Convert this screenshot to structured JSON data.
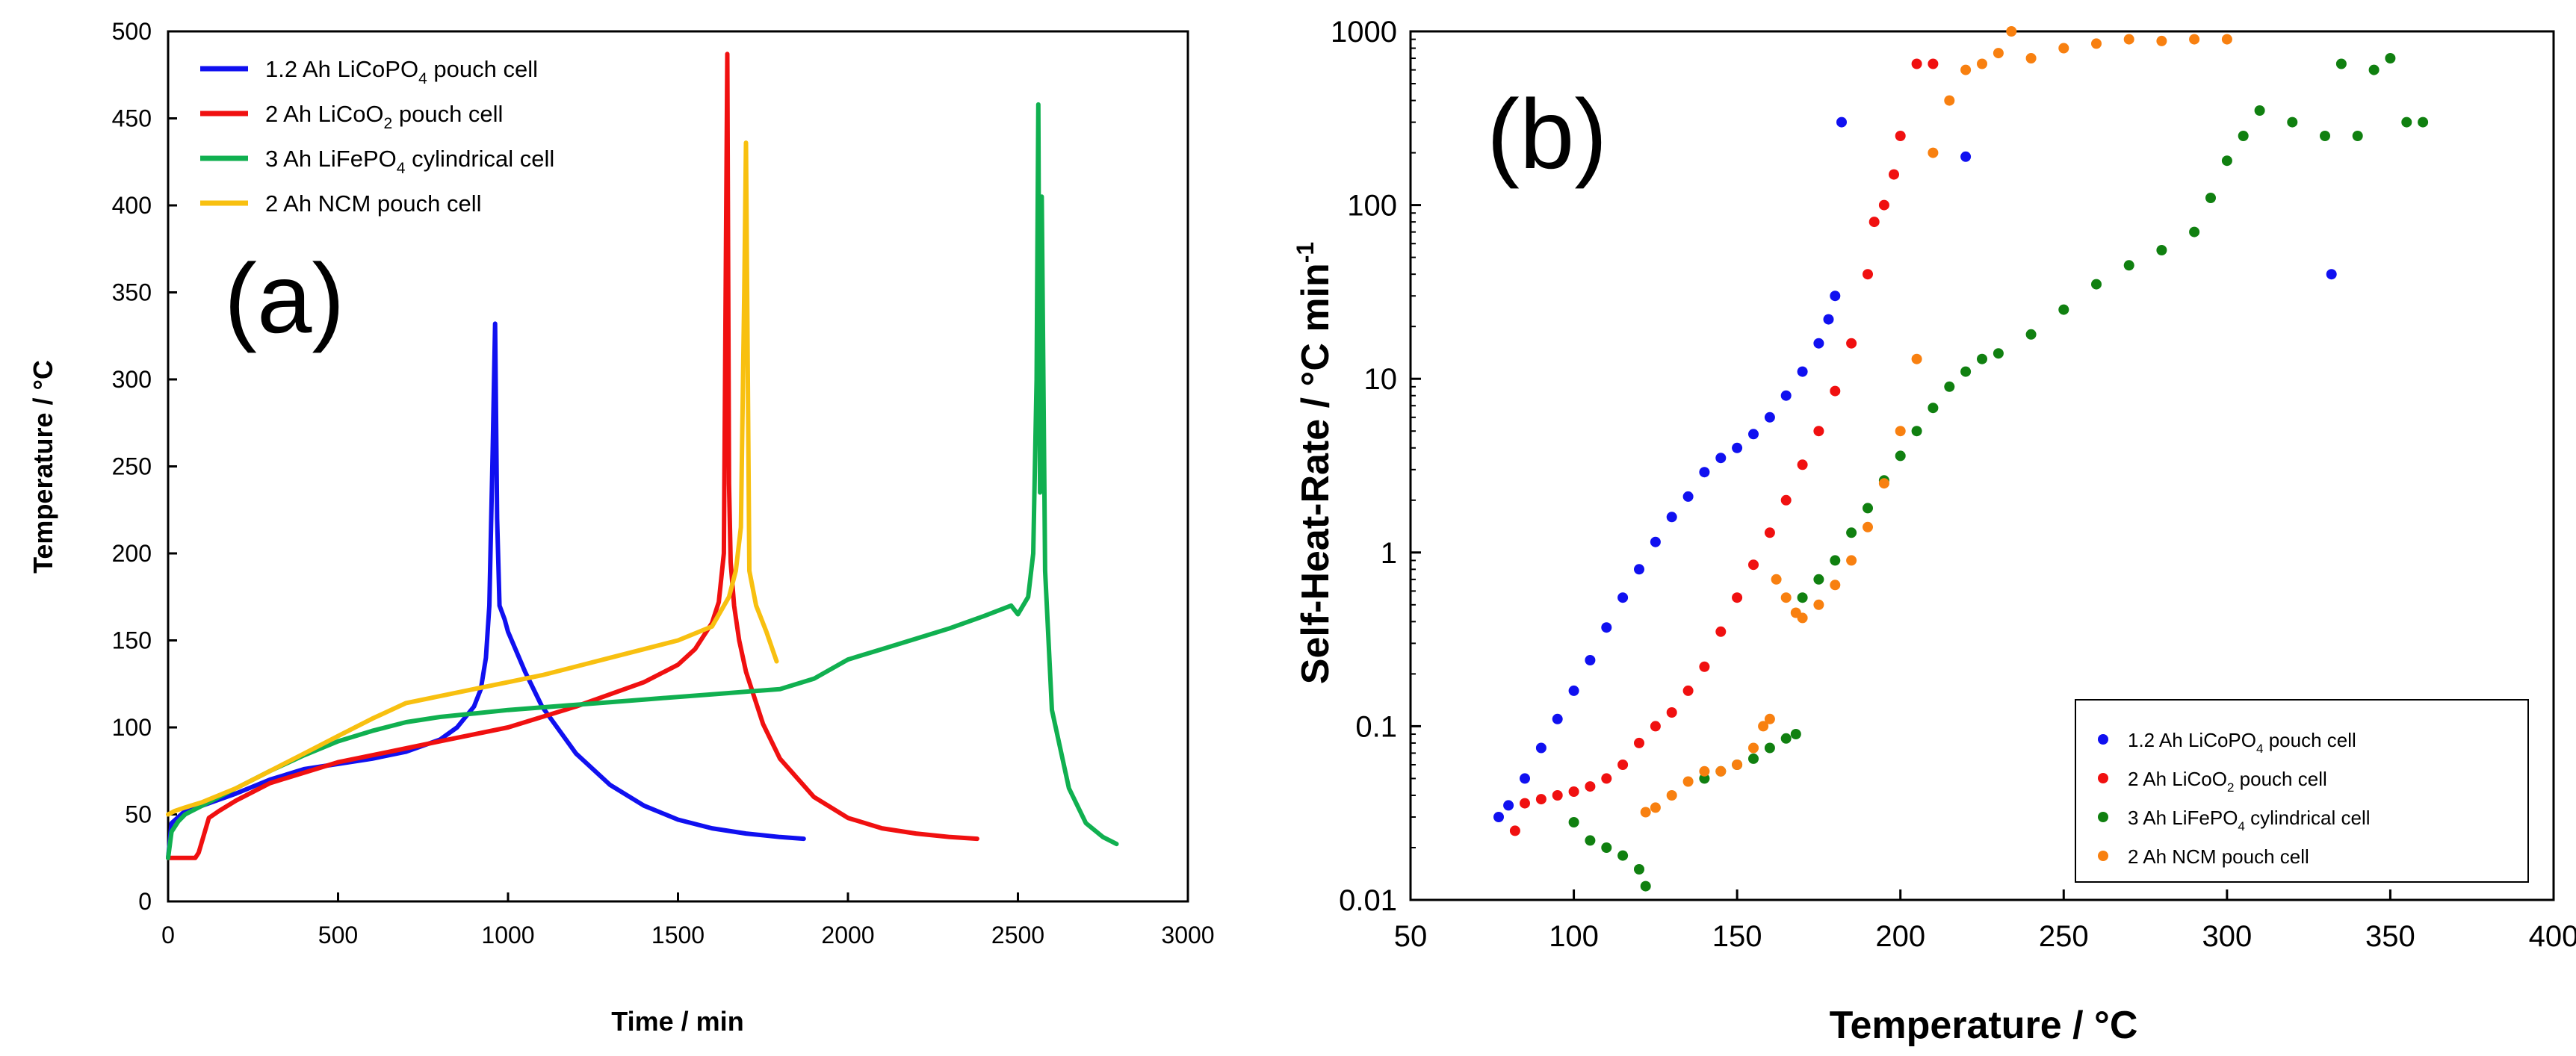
{
  "chart_data": [
    {
      "type": "line",
      "panel_label": "(a)",
      "xlabel": "Time / min",
      "ylabel": "Temperature / °C",
      "xlim": [
        0,
        3000
      ],
      "ylim": [
        0,
        500
      ],
      "xticks": [
        0,
        500,
        1000,
        1500,
        2000,
        2500,
        3000
      ],
      "yticks": [
        0,
        50,
        100,
        150,
        200,
        250,
        300,
        350,
        400,
        450,
        500
      ],
      "legend_position": "top-left",
      "series": [
        {
          "name": "1.2 Ah LiCoPO4 pouch cell",
          "label_main": "1.2 Ah LiCoPO",
          "label_sub": "4",
          "label_tail": " pouch cell",
          "color": "#1010f0",
          "x": [
            0,
            10,
            50,
            100,
            200,
            300,
            400,
            500,
            600,
            700,
            800,
            850,
            900,
            920,
            935,
            945,
            955,
            962,
            968,
            975,
            990,
            1000,
            1050,
            1100,
            1200,
            1300,
            1400,
            1500,
            1600,
            1700,
            1800,
            1870
          ],
          "y": [
            25,
            45,
            52,
            55,
            62,
            70,
            76,
            79,
            82,
            86,
            93,
            100,
            112,
            122,
            140,
            170,
            260,
            332,
            220,
            170,
            162,
            155,
            132,
            112,
            85,
            67,
            55,
            47,
            42,
            39,
            37,
            36
          ]
        },
        {
          "name": "2 Ah LiCoO2 pouch cell",
          "label_main": "2 Ah LiCoO",
          "label_sub": "2",
          "label_tail": " pouch cell",
          "color": "#f01010",
          "x": [
            0,
            80,
            90,
            120,
            150,
            200,
            300,
            400,
            500,
            600,
            700,
            800,
            900,
            1000,
            1100,
            1200,
            1300,
            1400,
            1500,
            1550,
            1600,
            1620,
            1635,
            1645,
            1650,
            1655,
            1665,
            1680,
            1700,
            1750,
            1800,
            1900,
            2000,
            2100,
            2200,
            2300,
            2380
          ],
          "y": [
            25,
            25,
            28,
            48,
            52,
            58,
            68,
            74,
            80,
            84,
            88,
            92,
            96,
            100,
            106,
            112,
            119,
            126,
            136,
            145,
            160,
            172,
            200,
            487,
            240,
            195,
            170,
            150,
            132,
            102,
            82,
            60,
            48,
            42,
            39,
            37,
            36
          ]
        },
        {
          "name": "3 Ah LiFePO4 cylindrical cell",
          "label_main": "3 Ah LiFePO",
          "label_sub": "4",
          "label_tail": " cylindrical cell",
          "color": "#10b050",
          "x": [
            0,
            10,
            30,
            50,
            100,
            200,
            300,
            400,
            500,
            600,
            700,
            800,
            900,
            1000,
            1200,
            1400,
            1600,
            1800,
            1900,
            2000,
            2100,
            2200,
            2300,
            2400,
            2480,
            2500,
            2530,
            2545,
            2555,
            2560,
            2565,
            2570,
            2580,
            2600,
            2650,
            2700,
            2750,
            2790
          ],
          "y": [
            25,
            40,
            46,
            50,
            55,
            65,
            75,
            84,
            92,
            98,
            103,
            106,
            108,
            110,
            113,
            116,
            119,
            122,
            128,
            139,
            145,
            151,
            157,
            164,
            170,
            165,
            175,
            200,
            300,
            458,
            235,
            405,
            190,
            110,
            65,
            45,
            37,
            33
          ]
        },
        {
          "name": "2 Ah NCM pouch cell",
          "label_main": "2 Ah NCM pouch cell",
          "label_sub": "",
          "label_tail": "",
          "color": "#f8c010",
          "x": [
            0,
            20,
            50,
            100,
            200,
            300,
            400,
            500,
            600,
            700,
            800,
            900,
            1000,
            1100,
            1200,
            1300,
            1400,
            1500,
            1600,
            1650,
            1670,
            1685,
            1695,
            1700,
            1710,
            1730,
            1760,
            1790
          ],
          "y": [
            50,
            52,
            54,
            57,
            65,
            75,
            85,
            95,
            105,
            114,
            118,
            122,
            126,
            130,
            135,
            140,
            145,
            150,
            158,
            175,
            190,
            215,
            350,
            436,
            190,
            170,
            155,
            138
          ]
        }
      ]
    },
    {
      "type": "scatter",
      "panel_label": "(b)",
      "xlabel": "Temperature / °C",
      "ylabel": "Self-Heat-Rate / °C min-1",
      "ylabel_main": "Self-Heat-Rate / °C min",
      "ylabel_sup": "-1",
      "xlim": [
        50,
        400
      ],
      "ylim": [
        0.01,
        1000
      ],
      "yscale": "log",
      "xticks": [
        50,
        100,
        150,
        200,
        250,
        300,
        350,
        400
      ],
      "yticks": [
        0.01,
        0.1,
        1,
        10,
        100,
        1000
      ],
      "ytick_labels": [
        "0.01",
        "0.1",
        "1",
        "10",
        "100",
        "1000"
      ],
      "legend_position": "bottom-right",
      "series": [
        {
          "name": "1.2 Ah LiCoPO4 pouch cell",
          "label_main": "1.2 Ah LiCoPO",
          "label_sub": "4",
          "label_tail": " pouch cell",
          "color": "#1010f0",
          "x": [
            77,
            80,
            85,
            90,
            95,
            100,
            105,
            110,
            115,
            120,
            125,
            130,
            135,
            140,
            145,
            150,
            155,
            160,
            165,
            170,
            175,
            178,
            180,
            182,
            220,
            332
          ],
          "y": [
            0.03,
            0.035,
            0.05,
            0.075,
            0.11,
            0.16,
            0.24,
            0.37,
            0.55,
            0.8,
            1.15,
            1.6,
            2.1,
            2.9,
            3.5,
            4.0,
            4.8,
            6.0,
            8.0,
            11,
            16,
            22,
            30,
            300,
            190,
            40
          ]
        },
        {
          "name": "2 Ah LiCoO2 pouch cell",
          "label_main": "2 Ah LiCoO",
          "label_sub": "2",
          "label_tail": " pouch cell",
          "color": "#f01010",
          "x": [
            82,
            85,
            90,
            95,
            100,
            105,
            110,
            115,
            120,
            125,
            130,
            135,
            140,
            145,
            150,
            155,
            160,
            165,
            170,
            175,
            180,
            185,
            190,
            192,
            195,
            198,
            200,
            205,
            210
          ],
          "y": [
            0.025,
            0.036,
            0.038,
            0.04,
            0.042,
            0.045,
            0.05,
            0.06,
            0.08,
            0.1,
            0.12,
            0.16,
            0.22,
            0.35,
            0.55,
            0.85,
            1.3,
            2.0,
            3.2,
            5.0,
            8.5,
            16,
            40,
            80,
            100,
            150,
            250,
            650,
            650
          ]
        },
        {
          "name": "3 Ah LiFePO4 cylindrical cell",
          "label_main": "3 Ah LiFePO",
          "label_sub": "4",
          "label_tail": " cylindrical cell",
          "color": "#108010",
          "x": [
            100,
            105,
            110,
            115,
            120,
            122,
            140,
            145,
            150,
            155,
            160,
            165,
            168,
            170,
            175,
            180,
            185,
            190,
            195,
            200,
            205,
            210,
            215,
            220,
            225,
            230,
            240,
            250,
            260,
            270,
            280,
            290,
            295,
            300,
            305,
            310,
            320,
            330,
            335,
            340,
            345,
            350,
            355,
            360
          ],
          "y": [
            0.028,
            0.022,
            0.02,
            0.018,
            0.015,
            0.012,
            0.05,
            0.055,
            0.06,
            0.065,
            0.075,
            0.085,
            0.09,
            0.55,
            0.7,
            0.9,
            1.3,
            1.8,
            2.6,
            3.6,
            5.0,
            6.8,
            9.0,
            11,
            13,
            14,
            18,
            25,
            35,
            45,
            55,
            70,
            110,
            180,
            250,
            350,
            300,
            250,
            650,
            250,
            600,
            700,
            300,
            300
          ]
        },
        {
          "name": "2 Ah NCM pouch cell",
          "label_main": "2 Ah NCM pouch cell",
          "label_sub": "",
          "label_tail": "",
          "color": "#f88010",
          "x": [
            122,
            125,
            130,
            135,
            140,
            145,
            150,
            155,
            158,
            160,
            162,
            165,
            168,
            170,
            175,
            180,
            185,
            190,
            195,
            200,
            205,
            210,
            215,
            220,
            225,
            230,
            234,
            240,
            250,
            260,
            270,
            280,
            290,
            300
          ],
          "y": [
            0.032,
            0.034,
            0.04,
            0.048,
            0.055,
            0.055,
            0.06,
            0.075,
            0.1,
            0.11,
            0.7,
            0.55,
            0.45,
            0.42,
            0.5,
            0.65,
            0.9,
            1.4,
            2.5,
            5,
            13,
            200,
            400,
            600,
            650,
            750,
            1000,
            700,
            800,
            850,
            900,
            880,
            900,
            900
          ]
        }
      ]
    }
  ]
}
